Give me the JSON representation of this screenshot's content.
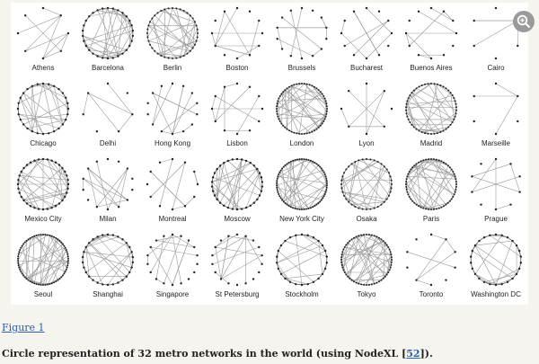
{
  "figure": {
    "networks": [
      {
        "city": "Athens",
        "nodes": 8,
        "edges": 9
      },
      {
        "city": "Barcelona",
        "nodes": 30,
        "edges": 32
      },
      {
        "city": "Berlin",
        "nodes": 40,
        "edges": 30
      },
      {
        "city": "Boston",
        "nodes": 12,
        "edges": 10
      },
      {
        "city": "Brussels",
        "nodes": 14,
        "edges": 11
      },
      {
        "city": "Bucharest",
        "nodes": 12,
        "edges": 10
      },
      {
        "city": "Buenos Aires",
        "nodes": 12,
        "edges": 9
      },
      {
        "city": "Cairo",
        "nodes": 6,
        "edges": 4
      },
      {
        "city": "Chicago",
        "nodes": 28,
        "edges": 24
      },
      {
        "city": "Delhi",
        "nodes": 7,
        "edges": 5
      },
      {
        "city": "Hong Kong",
        "nodes": 14,
        "edges": 12
      },
      {
        "city": "Lisbon",
        "nodes": 12,
        "edges": 10
      },
      {
        "city": "London",
        "nodes": 60,
        "edges": 38
      },
      {
        "city": "Lyon",
        "nodes": 8,
        "edges": 6
      },
      {
        "city": "Madrid",
        "nodes": 50,
        "edges": 36
      },
      {
        "city": "Marseille",
        "nodes": 6,
        "edges": 3
      },
      {
        "city": "Mexico City",
        "nodes": 36,
        "edges": 30
      },
      {
        "city": "Milan",
        "nodes": 14,
        "edges": 12
      },
      {
        "city": "Montreal",
        "nodes": 12,
        "edges": 10
      },
      {
        "city": "Moscow",
        "nodes": 34,
        "edges": 28
      },
      {
        "city": "New York City",
        "nodes": 70,
        "edges": 40
      },
      {
        "city": "Osaka",
        "nodes": 40,
        "edges": 32
      },
      {
        "city": "Paris",
        "nodes": 60,
        "edges": 40
      },
      {
        "city": "Prague",
        "nodes": 10,
        "edges": 7
      },
      {
        "city": "Seoul",
        "nodes": 70,
        "edges": 44
      },
      {
        "city": "Shanghai",
        "nodes": 30,
        "edges": 22
      },
      {
        "city": "Singapore",
        "nodes": 18,
        "edges": 14
      },
      {
        "city": "St Petersburg",
        "nodes": 18,
        "edges": 14
      },
      {
        "city": "Stockholm",
        "nodes": 26,
        "edges": 16
      },
      {
        "city": "Tokyo",
        "nodes": 60,
        "edges": 46
      },
      {
        "city": "Toronto",
        "nodes": 10,
        "edges": 6
      },
      {
        "city": "Washington DC",
        "nodes": 26,
        "edges": 18
      }
    ]
  },
  "zoom_icon": "zoom-in-icon",
  "figure_link": "Figure 1",
  "caption": {
    "before": "Circle representation of 32 metro networks in the world (using NodeXL [",
    "ref": "52",
    "after": "])."
  },
  "colors": {
    "link": "#2a5fa8",
    "edge": "#9a9a9a",
    "node": "#222222",
    "background": "#f6f4ee"
  }
}
